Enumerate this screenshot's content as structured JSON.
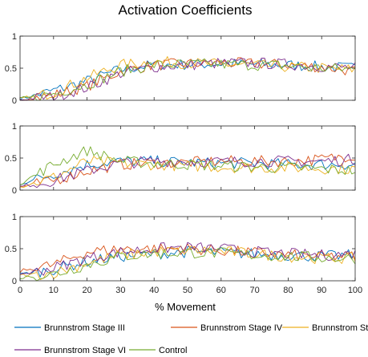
{
  "chart_data": {
    "type": "line",
    "title": "Activation Coefficients",
    "xlabel": "% Movement",
    "xlim": [
      0,
      100
    ],
    "xticks": [
      "0",
      "10",
      "20",
      "30",
      "40",
      "50",
      "60",
      "70",
      "80",
      "90",
      "100"
    ],
    "ylim": [
      0,
      1
    ],
    "yticks": [
      "0",
      "0.5",
      "1"
    ],
    "grid": false,
    "legend_placement": "bottom",
    "legend": [
      {
        "name": "Brunnstrom Stage III",
        "color": "#0072BD"
      },
      {
        "name": "Brunnstrom Stage IV",
        "color": "#D95319"
      },
      {
        "name": "Brunnstrom Stage",
        "color": "#EDB120"
      },
      {
        "name": "Brunnstrom Stage VI",
        "color": "#7E2F8E"
      },
      {
        "name": "Control",
        "color": "#77AC30"
      }
    ],
    "panels": [
      {
        "series": [
          {
            "name": "Brunnstrom Stage III",
            "color": "#0072BD",
            "x": [
              0,
              10,
              20,
              30,
              40,
              50,
              60,
              70,
              80,
              90,
              100
            ],
            "values": [
              0.02,
              0.15,
              0.3,
              0.48,
              0.55,
              0.56,
              0.57,
              0.56,
              0.55,
              0.52,
              0.5
            ]
          },
          {
            "name": "Brunnstrom Stage IV",
            "color": "#D95319",
            "x": [
              0,
              10,
              20,
              30,
              40,
              50,
              60,
              70,
              80,
              90,
              100
            ],
            "values": [
              0.01,
              0.08,
              0.22,
              0.45,
              0.55,
              0.57,
              0.58,
              0.57,
              0.55,
              0.52,
              0.45
            ]
          },
          {
            "name": "Brunnstrom Stage",
            "color": "#EDB120",
            "x": [
              0,
              10,
              20,
              30,
              40,
              50,
              60,
              70,
              80,
              90,
              100
            ],
            "values": [
              0.02,
              0.12,
              0.35,
              0.55,
              0.6,
              0.58,
              0.56,
              0.55,
              0.52,
              0.5,
              0.48
            ]
          },
          {
            "name": "Brunnstrom Stage VI",
            "color": "#7E2F8E",
            "x": [
              0,
              10,
              20,
              30,
              40,
              50,
              60,
              70,
              80,
              90,
              100
            ],
            "values": [
              0.01,
              0.06,
              0.2,
              0.42,
              0.52,
              0.55,
              0.58,
              0.58,
              0.56,
              0.53,
              0.5
            ]
          },
          {
            "name": "Control",
            "color": "#77AC30",
            "x": [
              0,
              10,
              20,
              30,
              40,
              50,
              60,
              70,
              80,
              90,
              100
            ],
            "values": [
              0.02,
              0.1,
              0.25,
              0.45,
              0.55,
              0.56,
              0.56,
              0.55,
              0.54,
              0.5,
              0.48
            ]
          }
        ]
      },
      {
        "series": [
          {
            "name": "Brunnstrom Stage III",
            "color": "#0072BD",
            "x": [
              0,
              10,
              20,
              30,
              40,
              50,
              60,
              70,
              80,
              90,
              100
            ],
            "values": [
              0.1,
              0.25,
              0.4,
              0.45,
              0.45,
              0.43,
              0.42,
              0.42,
              0.4,
              0.4,
              0.4
            ]
          },
          {
            "name": "Brunnstrom Stage IV",
            "color": "#D95319",
            "x": [
              0,
              10,
              20,
              30,
              40,
              50,
              60,
              70,
              80,
              90,
              100
            ],
            "values": [
              0.05,
              0.15,
              0.3,
              0.4,
              0.42,
              0.43,
              0.45,
              0.45,
              0.45,
              0.48,
              0.55
            ]
          },
          {
            "name": "Brunnstrom Stage",
            "color": "#EDB120",
            "x": [
              0,
              10,
              20,
              30,
              40,
              50,
              60,
              70,
              80,
              90,
              100
            ],
            "values": [
              0.05,
              0.2,
              0.45,
              0.42,
              0.4,
              0.38,
              0.36,
              0.35,
              0.35,
              0.34,
              0.33
            ]
          },
          {
            "name": "Brunnstrom Stage VI",
            "color": "#7E2F8E",
            "x": [
              0,
              10,
              20,
              30,
              40,
              50,
              60,
              70,
              80,
              90,
              100
            ],
            "values": [
              0.05,
              0.15,
              0.3,
              0.42,
              0.45,
              0.45,
              0.44,
              0.45,
              0.45,
              0.45,
              0.48
            ]
          },
          {
            "name": "Control",
            "color": "#77AC30",
            "x": [
              0,
              10,
              20,
              30,
              40,
              50,
              60,
              70,
              80,
              90,
              100
            ],
            "values": [
              0.1,
              0.4,
              0.62,
              0.45,
              0.42,
              0.4,
              0.38,
              0.36,
              0.35,
              0.33,
              0.3
            ]
          }
        ]
      },
      {
        "series": [
          {
            "name": "Brunnstrom Stage III",
            "color": "#0072BD",
            "x": [
              0,
              10,
              20,
              30,
              40,
              50,
              60,
              70,
              80,
              90,
              100
            ],
            "values": [
              0.1,
              0.18,
              0.3,
              0.38,
              0.42,
              0.45,
              0.44,
              0.42,
              0.4,
              0.38,
              0.4
            ]
          },
          {
            "name": "Brunnstrom Stage IV",
            "color": "#D95319",
            "x": [
              0,
              10,
              20,
              30,
              40,
              50,
              60,
              70,
              80,
              90,
              100
            ],
            "values": [
              0.15,
              0.25,
              0.45,
              0.5,
              0.5,
              0.5,
              0.47,
              0.44,
              0.4,
              0.38,
              0.38
            ]
          },
          {
            "name": "Brunnstrom Stage",
            "color": "#EDB120",
            "x": [
              0,
              10,
              20,
              30,
              40,
              50,
              60,
              70,
              80,
              90,
              100
            ],
            "values": [
              0.08,
              0.12,
              0.28,
              0.4,
              0.45,
              0.48,
              0.46,
              0.42,
              0.38,
              0.35,
              0.35
            ]
          },
          {
            "name": "Brunnstrom Stage VI",
            "color": "#7E2F8E",
            "x": [
              0,
              10,
              20,
              30,
              40,
              50,
              60,
              70,
              80,
              90,
              100
            ],
            "values": [
              0.1,
              0.2,
              0.35,
              0.45,
              0.5,
              0.52,
              0.5,
              0.45,
              0.42,
              0.4,
              0.42
            ]
          },
          {
            "name": "Control",
            "color": "#77AC30",
            "x": [
              0,
              10,
              20,
              30,
              40,
              50,
              60,
              70,
              80,
              90,
              100
            ],
            "values": [
              0.05,
              0.1,
              0.25,
              0.38,
              0.42,
              0.44,
              0.43,
              0.4,
              0.38,
              0.36,
              0.35
            ]
          }
        ]
      }
    ]
  }
}
